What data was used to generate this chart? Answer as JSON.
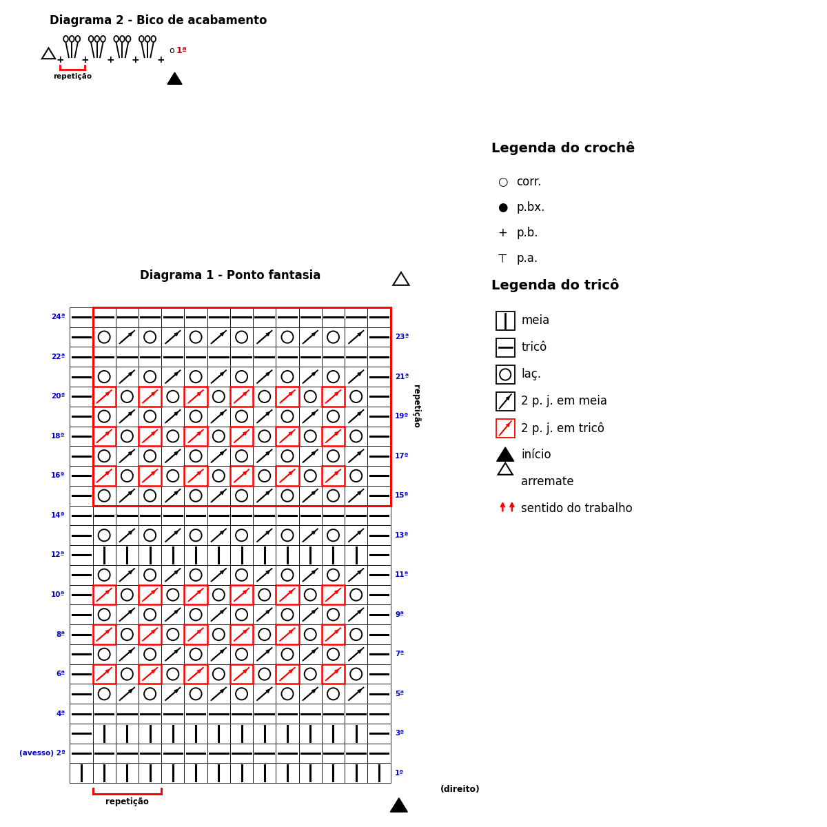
{
  "title1": "Diagrama 2 - Bico de acabamento",
  "title2": "Diagrama 1 - Ponto fantasia",
  "repetition_label": "repetição",
  "direito_label": "(direito)",
  "avesso_label": "(avesso) 2ª",
  "row_labels_left": {
    "24": "24ª",
    "22": "22ª",
    "20": "20ª",
    "18": "18ª",
    "16": "16ª",
    "14": "14ª",
    "12": "12ª",
    "10": "10ª",
    "8": "8ª",
    "6": "6ª",
    "4": "4ª",
    "2": "(avesso) 2ª"
  },
  "row_labels_right": {
    "23": "23ª",
    "21": "21ª",
    "19": "19ª",
    "17": "17ª",
    "15": "15ª",
    "13": "13ª",
    "11": "11ª",
    "9": "9ª",
    "7": "7ª",
    "5": "5ª",
    "3": "3ª",
    "1": "1ª"
  },
  "legend_crochet_title": "Legenda do crochê",
  "legend_trico_title": "Legenda do tricô",
  "blue_color": "#0000CC",
  "red_color": "#CC0000",
  "black_color": "#000000",
  "grid_cols": 14,
  "grid_rows": 24
}
